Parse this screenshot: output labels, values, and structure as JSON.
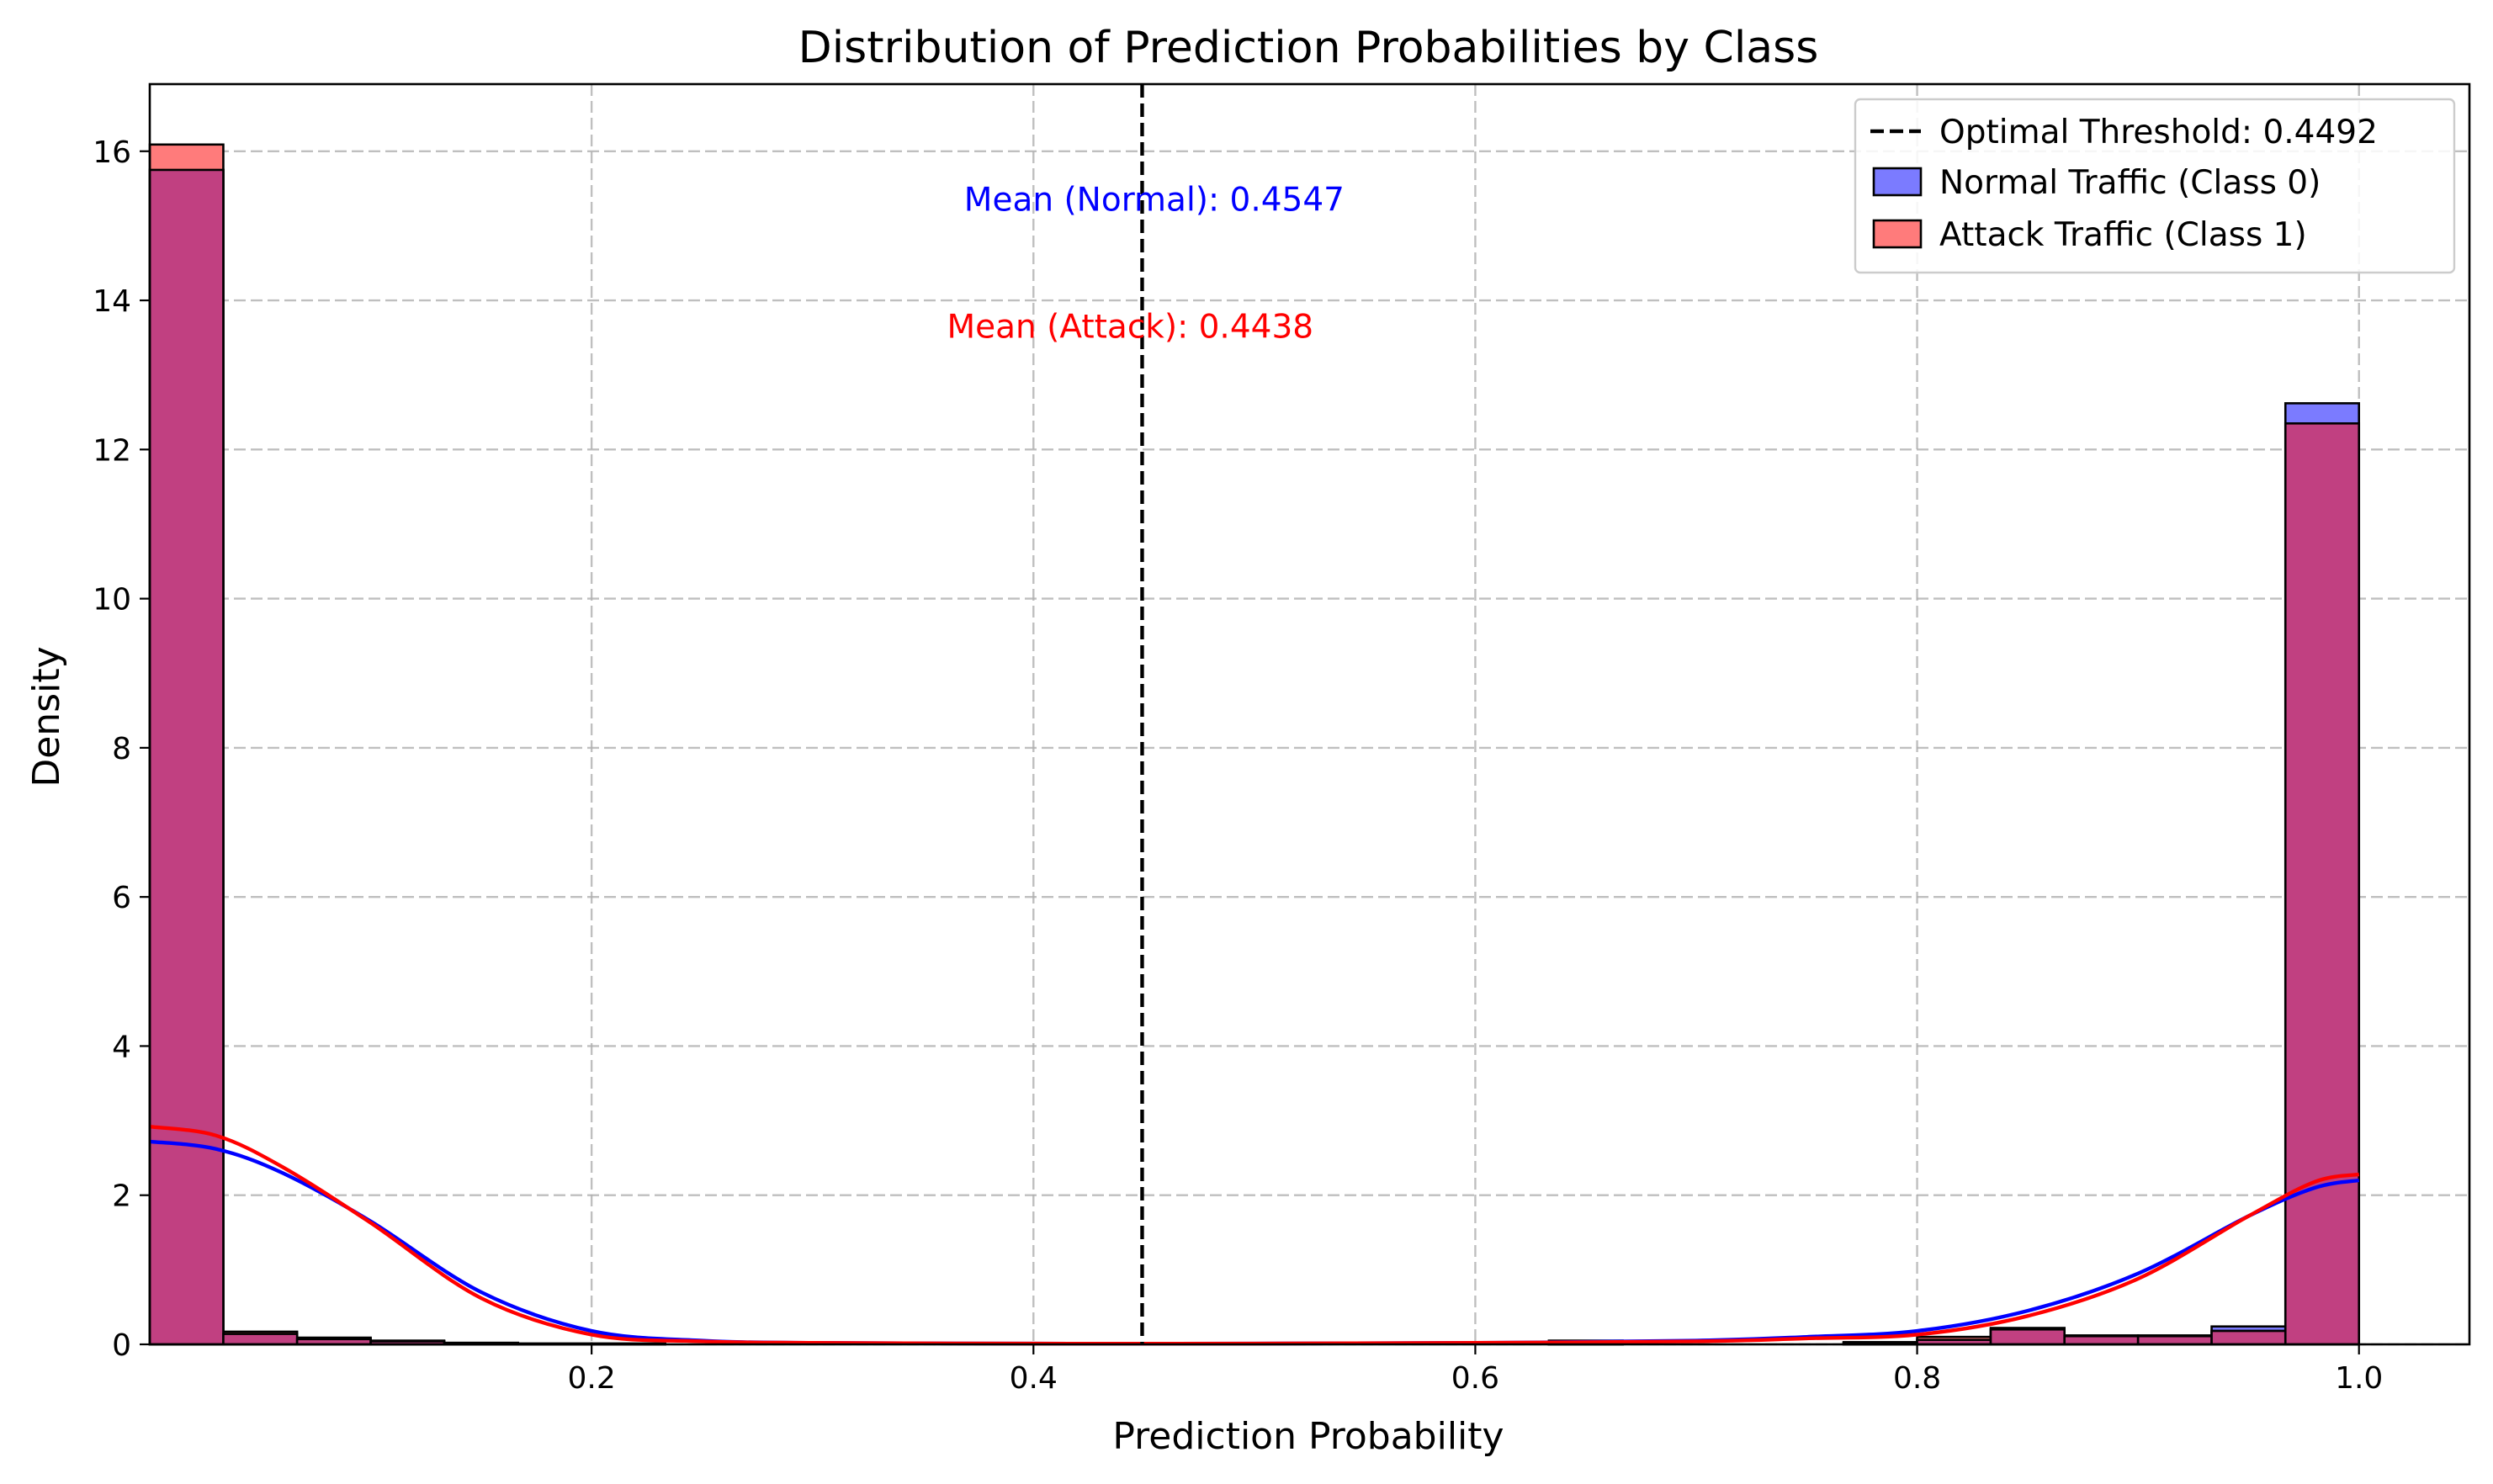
{
  "chart_data": {
    "type": "bar",
    "title": "Distribution of Prediction Probabilities by Class",
    "xlabel": "Prediction Probability",
    "ylabel": "Density",
    "xlim": [
      0.0,
      1.05
    ],
    "ylim": [
      0,
      16.9
    ],
    "xticks": [
      "0.2",
      "0.4",
      "0.6",
      "0.8",
      "1.0"
    ],
    "xtick_values": [
      0.2,
      0.4,
      0.6,
      0.8,
      1.0
    ],
    "yticks": [
      "0",
      "2",
      "4",
      "6",
      "8",
      "10",
      "12",
      "14",
      "16"
    ],
    "ytick_values": [
      0,
      2,
      4,
      6,
      8,
      10,
      12,
      14,
      16
    ],
    "grid": true,
    "legend_position": "top-right",
    "bin_edges": [
      0.0,
      0.0333,
      0.0667,
      0.1,
      0.1333,
      0.1667,
      0.2,
      0.2333,
      0.2667,
      0.3,
      0.3333,
      0.3667,
      0.4,
      0.4333,
      0.4667,
      0.5,
      0.5333,
      0.5667,
      0.6,
      0.6333,
      0.6667,
      0.7,
      0.7333,
      0.7667,
      0.8,
      0.8333,
      0.8667,
      0.9,
      0.9333,
      0.9667,
      1.0
    ],
    "series": [
      {
        "name": "Normal Traffic (Class 0)",
        "kind": "histogram",
        "color": "#7b7bff",
        "values": [
          15.75,
          0.14,
          0.07,
          0.04,
          0.02,
          0.01,
          0.01,
          0.0,
          0.0,
          0.0,
          0.0,
          0.0,
          0.0,
          0.0,
          0.0,
          0.0,
          0.0,
          0.0,
          0.0,
          0.04,
          0.0,
          0.0,
          0.0,
          0.02,
          0.06,
          0.2,
          0.11,
          0.11,
          0.24,
          12.62
        ]
      },
      {
        "name": "Attack Traffic (Class 1)",
        "kind": "histogram",
        "color": "#ff7b7b",
        "values": [
          16.09,
          0.17,
          0.09,
          0.05,
          0.02,
          0.01,
          0.01,
          0.0,
          0.0,
          0.0,
          0.0,
          0.0,
          0.0,
          0.0,
          0.0,
          0.0,
          0.0,
          0.0,
          0.0,
          0.05,
          0.0,
          0.0,
          0.0,
          0.03,
          0.1,
          0.22,
          0.12,
          0.12,
          0.18,
          12.35
        ]
      }
    ],
    "kde": [
      {
        "name": "Normal KDE",
        "color": "#0000ff",
        "x": [
          0.0,
          0.03,
          0.06,
          0.1,
          0.15,
          0.2,
          0.25,
          0.3,
          0.4,
          0.5,
          0.6,
          0.7,
          0.75,
          0.8,
          0.85,
          0.9,
          0.95,
          0.98,
          1.0
        ],
        "y": [
          2.72,
          2.62,
          2.3,
          1.65,
          0.7,
          0.18,
          0.05,
          0.02,
          0.01,
          0.01,
          0.02,
          0.05,
          0.1,
          0.18,
          0.45,
          0.95,
          1.72,
          2.1,
          2.2
        ]
      },
      {
        "name": "Attack KDE",
        "color": "#ff0000",
        "x": [
          0.0,
          0.03,
          0.06,
          0.1,
          0.15,
          0.2,
          0.25,
          0.3,
          0.4,
          0.5,
          0.6,
          0.7,
          0.75,
          0.8,
          0.85,
          0.9,
          0.95,
          0.98,
          1.0
        ],
        "y": [
          2.92,
          2.8,
          2.38,
          1.63,
          0.62,
          0.13,
          0.04,
          0.02,
          0.01,
          0.01,
          0.02,
          0.04,
          0.08,
          0.13,
          0.38,
          0.88,
          1.72,
          2.18,
          2.28
        ]
      }
    ],
    "threshold": {
      "value": 0.4492,
      "label": "Optimal Threshold: 0.4492",
      "color": "#000000"
    },
    "annotations": [
      {
        "text": "Mean (Normal): 0.4547",
        "x": 0.4547,
        "y": 15.2,
        "color": "#0000ff"
      },
      {
        "text": "Mean (Attack): 0.4438",
        "x": 0.4438,
        "y": 13.5,
        "color": "#ff0000"
      }
    ],
    "overlap_color": "#c14081"
  }
}
